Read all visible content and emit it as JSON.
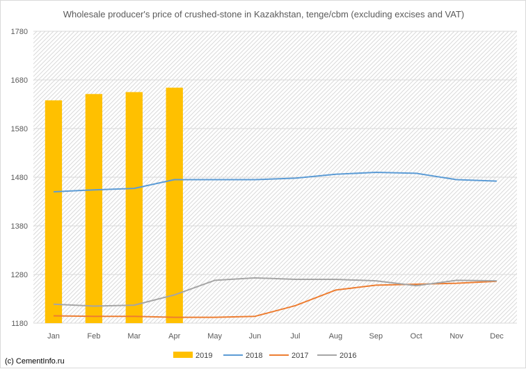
{
  "chart_data": {
    "type": "bar+line",
    "title": "Wholesale producer's price of crushed-stone in Kazakhstan, tenge/cbm (excluding excises and VAT)",
    "categories": [
      "Jan",
      "Feb",
      "Mar",
      "Apr",
      "May",
      "Jun",
      "Jul",
      "Aug",
      "Sep",
      "Oct",
      "Nov",
      "Dec"
    ],
    "yticks": [
      "1180",
      "1280",
      "1380",
      "1480",
      "1580",
      "1680",
      "1780"
    ],
    "ylim": [
      1180,
      1780
    ],
    "grid": "horizontal",
    "legend_position": "bottom",
    "series": [
      {
        "name": "2019",
        "kind": "bar",
        "color": "#FFC000",
        "values": [
          1638,
          1651,
          1655,
          1664,
          null,
          null,
          null,
          null,
          null,
          null,
          null,
          null
        ]
      },
      {
        "name": "2018",
        "kind": "line",
        "color": "#5B9BD5",
        "values": [
          1450,
          1454,
          1457,
          1475,
          1475,
          1475,
          1478,
          1486,
          1490,
          1488,
          1475,
          1472
        ]
      },
      {
        "name": "2017",
        "kind": "line",
        "color": "#ED7D31",
        "values": [
          1195,
          1194,
          1194,
          1192,
          1192,
          1194,
          1216,
          1248,
          1258,
          1260,
          1262,
          1266
        ]
      },
      {
        "name": "2016",
        "kind": "line",
        "color": "#A5A5A5",
        "values": [
          1219,
          1215,
          1217,
          1238,
          1268,
          1273,
          1270,
          1270,
          1267,
          1257,
          1268,
          1267
        ]
      }
    ]
  },
  "footer": "(c) CementInfo.ru"
}
